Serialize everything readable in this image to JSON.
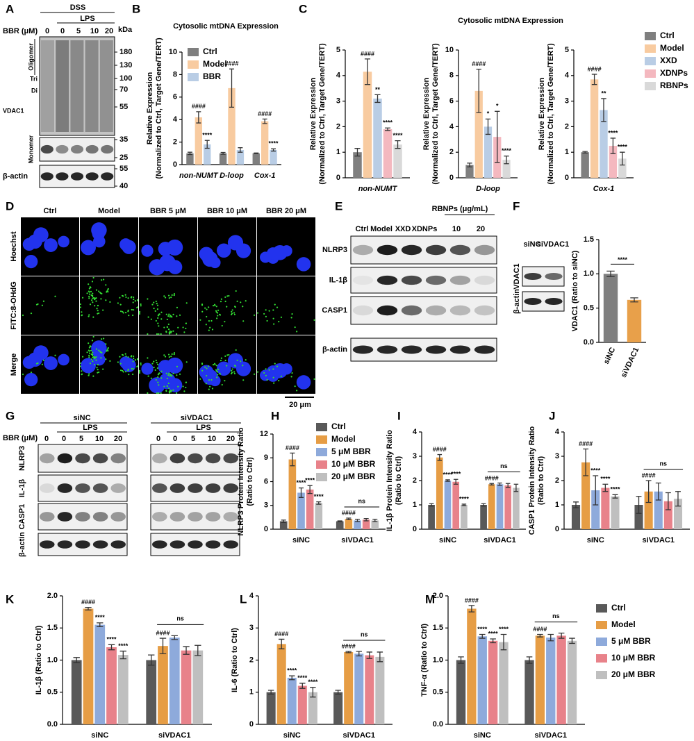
{
  "panels": {
    "A": {
      "letter": "A",
      "treatment": "DSS",
      "stimulus": "LPS",
      "dose_label": "BBR (μM)",
      "lanes": [
        "0",
        "0",
        "5",
        "10",
        "20"
      ],
      "mw_unit": "kDa",
      "mw_markers": [
        "180",
        "130",
        "100",
        "70",
        "55",
        "35",
        "25",
        "55",
        "40"
      ],
      "oligomer": "Oligomer",
      "trimer": "Tri",
      "dimer": "Di",
      "protein": "VDAC1",
      "monomer": "Monomer",
      "loading": "β-actin"
    },
    "D": {
      "letter": "D",
      "columns": [
        "Ctrl",
        "Model",
        "BBR 5 μM",
        "BBR 10 μM",
        "BBR 20 μM"
      ],
      "rows": [
        "Hoechst",
        "FITC:8-OHdG",
        "Merge"
      ],
      "scale_bar": "20 μm"
    },
    "E": {
      "letter": "E",
      "group": "RBNPs (μg/mL)",
      "lanes": [
        "Ctrl",
        "Model",
        "XXD",
        "XDNPs",
        "10",
        "20"
      ],
      "rows": [
        "NLRP3",
        "IL-1β",
        "CASP1",
        "β-actin"
      ]
    },
    "F": {
      "letter": "F",
      "lanes": [
        "siNC",
        "siVDAC1"
      ],
      "rows": [
        "β-actin",
        "VDAC1"
      ]
    },
    "G": {
      "letter": "G",
      "groups": [
        "siNC",
        "siVDAC1"
      ],
      "stimulus": "LPS",
      "dose_label": "BBR (μM)",
      "lanes": [
        "0",
        "0",
        "5",
        "10",
        "20"
      ],
      "rows": [
        "NLRP3",
        "IL-1β",
        "CASP1",
        "β-actin"
      ]
    }
  },
  "chart_data": [
    {
      "panel": "B",
      "type": "bar",
      "title": "Cytosolic mtDNA Expression",
      "ylabel": [
        "Relative Expression",
        "(Normalized to Ctrl, Target Gene/TERT)"
      ],
      "categories": [
        "non-NUMT",
        "D-loop",
        "Cox-1"
      ],
      "ylim": [
        0,
        10
      ],
      "yticks": [
        0,
        2,
        4,
        6,
        8,
        10
      ],
      "legend": "upper left",
      "series": [
        {
          "name": "Ctrl",
          "color": "#7f7f7f",
          "values": [
            1,
            1,
            1
          ],
          "errors": [
            0.1,
            0.08,
            0.03
          ]
        },
        {
          "name": "Model",
          "color": "#f8cba0",
          "values": [
            4.2,
            6.8,
            3.85
          ],
          "errors": [
            0.5,
            1.7,
            0.2
          ],
          "annotations": [
            "####",
            "####",
            "####"
          ]
        },
        {
          "name": "BBR",
          "color": "#b9cde5",
          "values": [
            1.8,
            1.3,
            1.3
          ],
          "errors": [
            0.35,
            0.2,
            0.1
          ],
          "annotations": [
            "****",
            null,
            "****"
          ]
        }
      ]
    },
    {
      "panel": "C",
      "type": "bar",
      "title": "Cytosolic mtDNA Expression",
      "ylabel": [
        "Relative Expression",
        "(Normalized to Ctrl, Target Gene/TERT)"
      ],
      "categories": [
        "non-NUMT",
        "D-loop",
        "Cox-1"
      ],
      "legend": "right",
      "facets": [
        {
          "ylim": [
            0,
            5
          ],
          "yticks": [
            0,
            1,
            2,
            3,
            4,
            5
          ]
        },
        {
          "ylim": [
            0,
            10
          ],
          "yticks": [
            0,
            2,
            4,
            6,
            8,
            10
          ]
        },
        {
          "ylim": [
            0,
            5
          ],
          "yticks": [
            0,
            1,
            2,
            3,
            4,
            5
          ]
        }
      ],
      "series": [
        {
          "name": "Ctrl",
          "color": "#7f7f7f",
          "values": [
            1.0,
            1.0,
            1.0
          ],
          "errors": [
            0.15,
            0.15,
            0.03
          ]
        },
        {
          "name": "Model",
          "color": "#f8cba0",
          "values": [
            4.15,
            6.8,
            3.85
          ],
          "errors": [
            0.5,
            1.7,
            0.2
          ],
          "annotations": [
            "####",
            "####",
            "####"
          ]
        },
        {
          "name": "XXD",
          "color": "#b9cde5",
          "values": [
            3.1,
            4.0,
            2.65
          ],
          "errors": [
            0.15,
            0.6,
            0.45
          ],
          "annotations": [
            "**",
            "*",
            "**"
          ]
        },
        {
          "name": "XDNPs",
          "color": "#f4b8bf",
          "values": [
            1.9,
            3.2,
            1.25
          ],
          "errors": [
            0.05,
            2.0,
            0.3
          ],
          "annotations": [
            "****",
            "*",
            "****"
          ]
        },
        {
          "name": "RBNPs",
          "color": "#d9d9d9",
          "values": [
            1.3,
            1.4,
            0.75
          ],
          "errors": [
            0.15,
            0.3,
            0.25
          ],
          "annotations": [
            "****",
            "****",
            "****"
          ]
        }
      ]
    },
    {
      "type": "bar",
      "ylabel": [
        "VDAC1 (Ratio to siNC)"
      ],
      "categories": [
        "siNC",
        "siVDAC1"
      ],
      "values": [
        1.0,
        0.62
      ],
      "errors": [
        0.04,
        0.03
      ],
      "colors": [
        "#7f7f7f",
        "#e8a04a"
      ],
      "ylim": [
        0,
        1.5
      ],
      "yticks": [
        {
          "value": 0,
          "label": "0.0"
        },
        {
          "value": 0.5,
          "label": "0.5"
        },
        {
          "value": 1,
          "label": "1.0"
        },
        {
          "value": 1.5,
          "label": "1.5"
        }
      ],
      "bracket_label": "****"
    },
    {
      "panel": "H",
      "type": "bar",
      "ylabel": [
        "NLRP3 Protein Intensity Ratio",
        "(Ratio to Ctrl)"
      ],
      "categories": [
        "siNC",
        "siVDAC1"
      ],
      "ylim": [
        0,
        12
      ],
      "yticks": [
        0,
        3,
        6,
        9,
        12
      ],
      "legend": "upper right",
      "bracket_label": "ns",
      "series": [
        {
          "name": "Ctrl",
          "color": "#595959",
          "values": [
            1.0,
            1.0
          ],
          "errors": [
            0.15,
            0.05
          ]
        },
        {
          "name": "Model",
          "color": "#e69d45",
          "values": [
            8.8,
            1.3
          ],
          "errors": [
            0.8,
            0.1
          ],
          "annotations": [
            "####",
            "####"
          ]
        },
        {
          "name": "5 μM BBR",
          "color": "#8eaadb",
          "values": [
            4.6,
            1.1
          ],
          "errors": [
            0.6,
            0.15
          ],
          "annotations": [
            "****",
            null
          ]
        },
        {
          "name": "10 μM BBR",
          "color": "#e8828a",
          "values": [
            5.0,
            1.2
          ],
          "errors": [
            0.5,
            0.15
          ],
          "annotations": [
            "****",
            null
          ]
        },
        {
          "name": "20 μM BBR",
          "color": "#bfbfbf",
          "values": [
            3.3,
            1.1
          ],
          "errors": [
            0.15,
            0.15
          ],
          "annotations": [
            "****",
            null
          ]
        }
      ]
    },
    {
      "panel": "I",
      "type": "bar",
      "ylabel": [
        "IL-1β Protein Intensity Ratio",
        "(Ratio to Ctrl)"
      ],
      "categories": [
        "siNC",
        "siVDAC1"
      ],
      "ylim": [
        0,
        4
      ],
      "yticks": [
        0,
        1,
        2,
        3,
        4
      ],
      "bracket_label": "ns",
      "series": [
        {
          "color": "#595959",
          "values": [
            1.0,
            1.0
          ],
          "errors": [
            0.05,
            0.05
          ]
        },
        {
          "color": "#e69d45",
          "values": [
            2.95,
            1.85
          ],
          "errors": [
            0.12,
            0.03
          ],
          "annotations": [
            "####",
            "####"
          ]
        },
        {
          "color": "#8eaadb",
          "values": [
            2.0,
            1.85
          ],
          "errors": [
            0.03,
            0.05
          ],
          "annotations": [
            "****",
            null
          ]
        },
        {
          "color": "#e8828a",
          "values": [
            1.95,
            1.8
          ],
          "errors": [
            0.1,
            0.08
          ],
          "annotations": [
            "****",
            null
          ]
        },
        {
          "color": "#bfbfbf",
          "values": [
            1.0,
            1.7
          ],
          "errors": [
            0.03,
            0.15
          ],
          "annotations": [
            "****",
            null
          ]
        }
      ]
    },
    {
      "panel": "J",
      "type": "bar",
      "ylabel": [
        "CASP1 Protein Intensity Ratio",
        "(Ratio to Ctrl)"
      ],
      "categories": [
        "siNC",
        "siVDAC1"
      ],
      "ylim": [
        0,
        4
      ],
      "yticks": [
        0,
        1,
        2,
        3,
        4
      ],
      "bracket_label": "ns",
      "series": [
        {
          "color": "#595959",
          "values": [
            1.0,
            1.0
          ],
          "errors": [
            0.12,
            0.35
          ]
        },
        {
          "color": "#e69d45",
          "values": [
            2.75,
            1.55
          ],
          "errors": [
            0.55,
            0.45
          ],
          "annotations": [
            "####",
            "####"
          ]
        },
        {
          "color": "#8eaadb",
          "values": [
            1.6,
            1.55
          ],
          "errors": [
            0.6,
            0.35
          ],
          "annotations": [
            "****",
            null
          ]
        },
        {
          "color": "#e8828a",
          "values": [
            1.7,
            1.15
          ],
          "errors": [
            0.15,
            0.35
          ],
          "annotations": [
            "****",
            null
          ]
        },
        {
          "color": "#bfbfbf",
          "values": [
            1.35,
            1.25
          ],
          "errors": [
            0.07,
            0.3
          ],
          "annotations": [
            "****",
            null
          ]
        }
      ]
    },
    {
      "panel": "K",
      "type": "bar",
      "ylabel": [
        "IL-1β (Ratio to Ctrl)"
      ],
      "categories": [
        "siNC",
        "siVDAC1"
      ],
      "ylim": [
        0,
        2
      ],
      "yticks": [
        {
          "value": 0,
          "label": "0.0"
        },
        {
          "value": 0.5,
          "label": "0.5"
        },
        {
          "value": 1,
          "label": "1.0"
        },
        {
          "value": 1.5,
          "label": "1.5"
        },
        {
          "value": 2,
          "label": "2.0"
        }
      ],
      "bracket_label": "ns",
      "series": [
        {
          "color": "#595959",
          "values": [
            1.0,
            1.0
          ],
          "errors": [
            0.04,
            0.08
          ]
        },
        {
          "color": "#e69d45",
          "values": [
            1.8,
            1.22
          ],
          "errors": [
            0.02,
            0.12
          ],
          "annotations": [
            "####",
            "####"
          ]
        },
        {
          "color": "#8eaadb",
          "values": [
            1.55,
            1.35
          ],
          "errors": [
            0.03,
            0.03
          ],
          "annotations": [
            "****",
            null
          ]
        },
        {
          "color": "#e8828a",
          "values": [
            1.2,
            1.15
          ],
          "errors": [
            0.04,
            0.06
          ],
          "annotations": [
            "****",
            null
          ]
        },
        {
          "color": "#bfbfbf",
          "values": [
            1.08,
            1.15
          ],
          "errors": [
            0.06,
            0.08
          ],
          "annotations": [
            "****",
            null
          ]
        }
      ]
    },
    {
      "panel": "L",
      "type": "bar",
      "ylabel": [
        "IL-6 (Ratio to Ctrl)"
      ],
      "categories": [
        "siNC",
        "siVDAC1"
      ],
      "ylim": [
        0,
        4
      ],
      "yticks": [
        0,
        1,
        2,
        3,
        4
      ],
      "bracket_label": "ns",
      "series": [
        {
          "color": "#595959",
          "values": [
            1.0,
            1.0
          ],
          "errors": [
            0.06,
            0.06
          ]
        },
        {
          "color": "#e69d45",
          "values": [
            2.5,
            2.25
          ],
          "errors": [
            0.15,
            0.02
          ],
          "annotations": [
            "####",
            "####"
          ]
        },
        {
          "color": "#8eaadb",
          "values": [
            1.45,
            2.2
          ],
          "errors": [
            0.06,
            0.07
          ],
          "annotations": [
            "****",
            null
          ]
        },
        {
          "color": "#e8828a",
          "values": [
            1.2,
            2.15
          ],
          "errors": [
            0.08,
            0.1
          ],
          "annotations": [
            "****",
            null
          ]
        },
        {
          "color": "#bfbfbf",
          "values": [
            1.0,
            2.1
          ],
          "errors": [
            0.15,
            0.15
          ],
          "annotations": [
            "****",
            null
          ]
        }
      ]
    },
    {
      "panel": "M",
      "type": "bar",
      "ylabel": [
        "TNF-α (Ratio to Ctrl)"
      ],
      "categories": [
        "siNC",
        "siVDAC1"
      ],
      "ylim": [
        0,
        2
      ],
      "yticks": [
        {
          "value": 0,
          "label": "0.0"
        },
        {
          "value": 0.5,
          "label": "0.5"
        },
        {
          "value": 1,
          "label": "1.0"
        },
        {
          "value": 1.5,
          "label": "1.5"
        },
        {
          "value": 2,
          "label": "2.0"
        }
      ],
      "legend": "right",
      "bracket_label": "ns",
      "series": [
        {
          "name": "Ctrl",
          "color": "#595959",
          "values": [
            1.0,
            1.0
          ],
          "errors": [
            0.05,
            0.05
          ]
        },
        {
          "name": "Model",
          "color": "#e69d45",
          "values": [
            1.8,
            1.38
          ],
          "errors": [
            0.05,
            0.02
          ],
          "annotations": [
            "####",
            "####"
          ]
        },
        {
          "name": "5 μM BBR",
          "color": "#8eaadb",
          "values": [
            1.37,
            1.35
          ],
          "errors": [
            0.03,
            0.05
          ],
          "annotations": [
            "****",
            null
          ]
        },
        {
          "name": "10 μM BBR",
          "color": "#e8828a",
          "values": [
            1.3,
            1.38
          ],
          "errors": [
            0.03,
            0.04
          ],
          "annotations": [
            "****",
            null
          ]
        },
        {
          "name": "20 μM BBR",
          "color": "#bfbfbf",
          "values": [
            1.28,
            1.3
          ],
          "errors": [
            0.12,
            0.04
          ],
          "annotations": [
            "****",
            null
          ]
        }
      ]
    }
  ]
}
